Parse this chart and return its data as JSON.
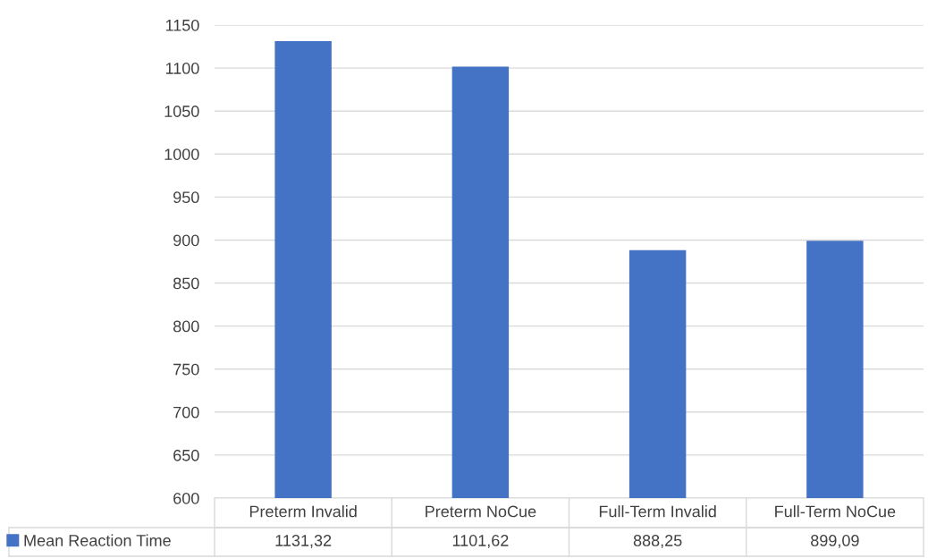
{
  "chart_data": {
    "type": "bar",
    "categories": [
      "Preterm Invalid",
      "Preterm NoCue",
      "Full-Term Invalid",
      "Full-Term NoCue"
    ],
    "series": [
      {
        "name": "Mean Reaction Time",
        "color": "#4472c4",
        "values": [
          1131.32,
          1101.62,
          888.25,
          899.09
        ],
        "value_labels": [
          "1131,32",
          "1101,62",
          "888,25",
          "899,09"
        ]
      }
    ],
    "ylim": [
      600,
      1150
    ],
    "yticks": [
      600,
      650,
      700,
      750,
      800,
      850,
      900,
      950,
      1000,
      1050,
      1100,
      1150
    ],
    "grid": "y",
    "legend": "bottom"
  }
}
